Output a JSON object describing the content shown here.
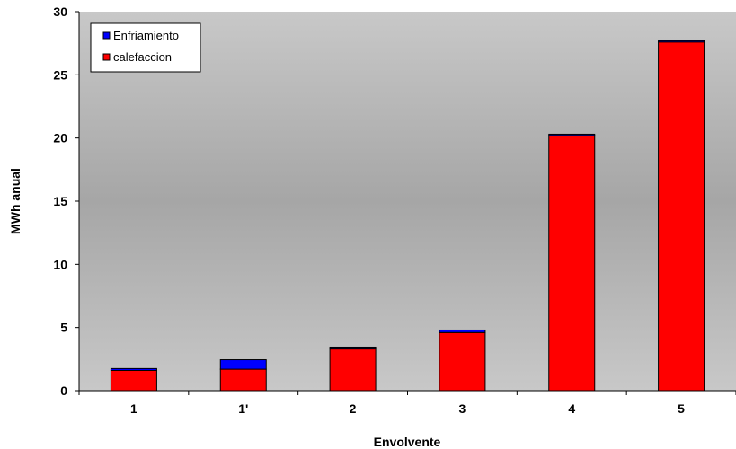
{
  "chart_data": {
    "type": "bar",
    "stacked": true,
    "categories": [
      "1",
      "1'",
      "2",
      "3",
      "4",
      "5"
    ],
    "series": [
      {
        "name": "calefaccion",
        "color": "#ff0000",
        "values": [
          1.6,
          1.7,
          3.3,
          4.6,
          20.2,
          27.6
        ]
      },
      {
        "name": "Enfriamiento",
        "color": "#0000ff",
        "values": [
          0.15,
          0.75,
          0.15,
          0.2,
          0.1,
          0.1
        ]
      }
    ],
    "xlabel": "Envolvente",
    "ylabel": "MWh anual",
    "ylim": [
      0,
      30
    ],
    "yticks": [
      0,
      5,
      10,
      15,
      20,
      25,
      30
    ],
    "legend": {
      "position": "top-left",
      "entries": [
        {
          "label": "Enfriamiento",
          "color": "#0000ff"
        },
        {
          "label": "calefaccion",
          "color": "#ff0000"
        }
      ]
    },
    "grid": false,
    "background": "gray-gradient"
  }
}
